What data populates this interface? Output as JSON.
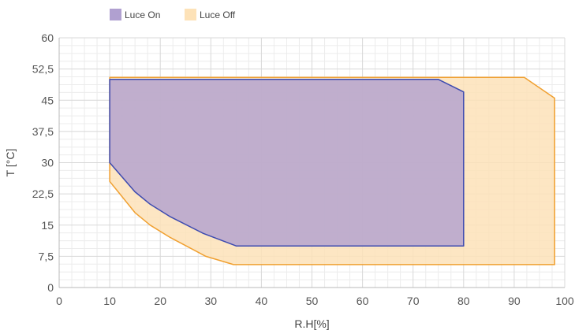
{
  "chart_data": {
    "type": "area",
    "xlabel": "R.H[%]",
    "ylabel": "T [°C]",
    "xlim": [
      0,
      100
    ],
    "ylim": [
      0,
      60
    ],
    "x_ticks": [
      "0",
      "10",
      "20",
      "30",
      "40",
      "50",
      "60",
      "70",
      "80",
      "90",
      "100"
    ],
    "y_ticks": [
      "0",
      "7,5",
      "15",
      "22,5",
      "30",
      "37,5",
      "45",
      "52,5",
      "60"
    ],
    "grid": true,
    "legend": "top-left",
    "series": [
      {
        "name": "Luce Off",
        "fill": "#fde2b8",
        "stroke": "#f0a030",
        "points": [
          [
            10,
            50.5
          ],
          [
            92,
            50.5
          ],
          [
            98,
            45.5
          ],
          [
            98,
            5.5
          ],
          [
            34.5,
            5.5
          ],
          [
            29,
            7.5
          ],
          [
            22,
            12
          ],
          [
            18,
            15
          ],
          [
            15,
            18
          ],
          [
            12,
            22.5
          ],
          [
            10,
            25.5
          ],
          [
            10,
            50.5
          ]
        ]
      },
      {
        "name": "Luce On",
        "fill": "#b0a0d0",
        "stroke": "#3d4bb0",
        "points": [
          [
            10,
            50
          ],
          [
            75,
            50
          ],
          [
            80,
            47
          ],
          [
            80,
            10
          ],
          [
            35,
            10
          ],
          [
            28.5,
            13
          ],
          [
            22,
            17
          ],
          [
            18,
            20
          ],
          [
            15,
            23
          ],
          [
            12.5,
            26.5
          ],
          [
            10,
            30
          ],
          [
            10,
            50
          ]
        ]
      }
    ]
  }
}
